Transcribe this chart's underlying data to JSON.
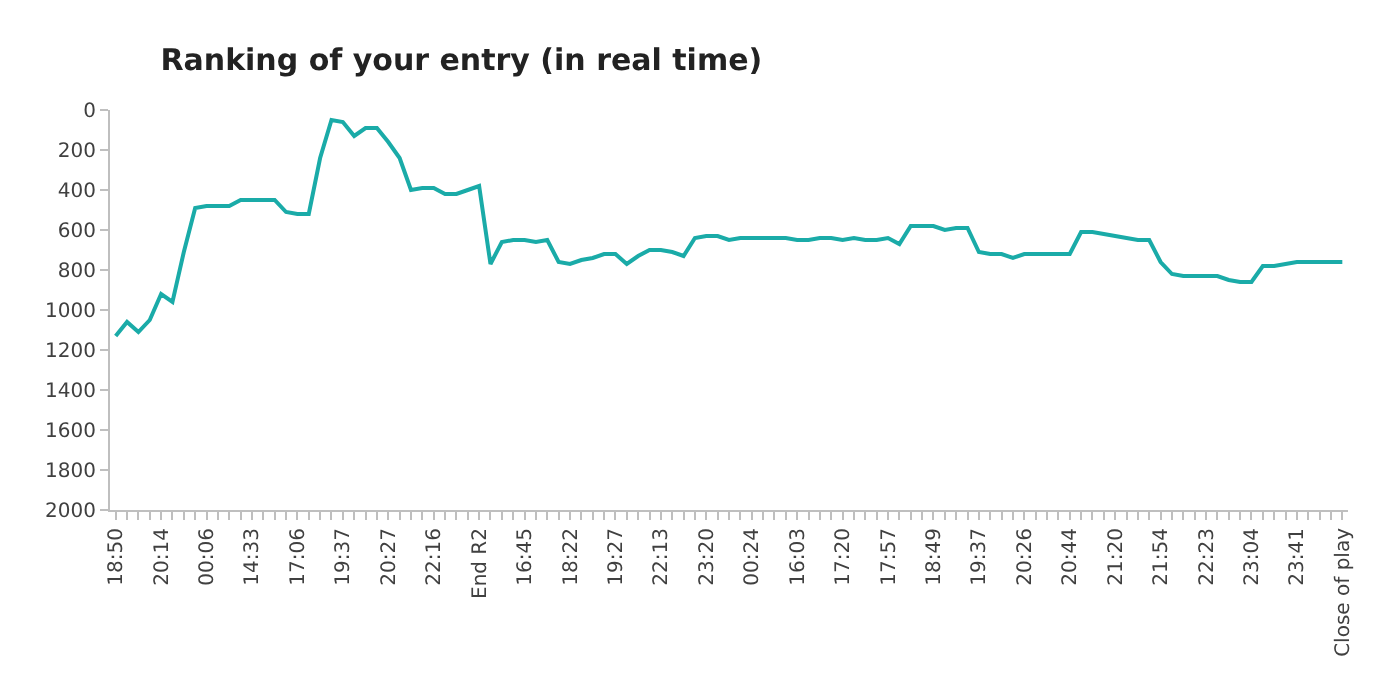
{
  "chart_data": {
    "type": "line",
    "title": "Ranking of your entry (in real time)",
    "categories": [
      "18:50",
      null,
      null,
      null,
      "20:14",
      null,
      null,
      null,
      "00:06",
      null,
      null,
      null,
      "14:33",
      null,
      null,
      null,
      "17:06",
      null,
      null,
      null,
      "19:37",
      null,
      null,
      null,
      "20:27",
      null,
      null,
      null,
      "22:16",
      null,
      null,
      null,
      "End R2",
      null,
      null,
      null,
      "16:45",
      null,
      null,
      null,
      "18:22",
      null,
      null,
      null,
      "19:27",
      null,
      null,
      null,
      "22:13",
      null,
      null,
      null,
      "23:20",
      null,
      null,
      null,
      "00:24",
      null,
      null,
      null,
      "16:03",
      null,
      null,
      null,
      "17:20",
      null,
      null,
      null,
      "17:57",
      null,
      null,
      null,
      "18:49",
      null,
      null,
      null,
      "19:37",
      null,
      null,
      null,
      "20:26",
      null,
      null,
      null,
      "20:44",
      null,
      null,
      null,
      "21:20",
      null,
      null,
      null,
      "21:54",
      null,
      null,
      null,
      "22:23",
      null,
      null,
      null,
      "23:04",
      null,
      null,
      null,
      "23:41",
      null,
      null,
      null,
      "Close of play"
    ],
    "series": [
      {
        "color": "#1aaba8",
        "values": [
          1130,
          1060,
          1110,
          1050,
          920,
          960,
          710,
          490,
          480,
          480,
          480,
          450,
          450,
          450,
          450,
          510,
          520,
          520,
          240,
          50,
          60,
          130,
          90,
          90,
          160,
          240,
          400,
          390,
          390,
          420,
          420,
          400,
          380,
          770,
          660,
          650,
          650,
          660,
          650,
          760,
          770,
          750,
          740,
          720,
          720,
          770,
          730,
          700,
          700,
          710,
          730,
          640,
          630,
          630,
          650,
          640,
          640,
          640,
          640,
          640,
          650,
          650,
          640,
          640,
          650,
          640,
          650,
          650,
          640,
          670,
          580,
          580,
          580,
          600,
          590,
          590,
          710,
          720,
          720,
          740,
          720,
          720,
          720,
          720,
          720,
          610,
          610,
          620,
          630,
          640,
          650,
          650,
          760,
          820,
          830,
          830,
          830,
          830,
          850,
          860,
          860,
          780,
          780,
          770,
          760,
          760,
          760,
          760,
          760
        ]
      }
    ],
    "ylim": [
      2000,
      0
    ],
    "yticks": [
      0,
      200,
      400,
      600,
      800,
      1000,
      1200,
      1400,
      1600,
      1800,
      2000
    ],
    "marker": "none",
    "line_style": "solid"
  }
}
